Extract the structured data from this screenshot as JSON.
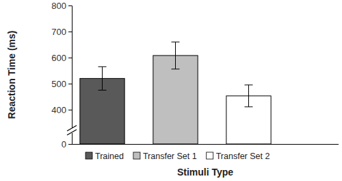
{
  "chart_data": {
    "type": "bar",
    "x_label": "Stimuli Type",
    "y_label": "Reaction Time (ms)",
    "categories": [
      "Trained",
      "Transfer Set 1",
      "Transfer Set 2"
    ],
    "values": [
      520,
      608,
      453
    ],
    "errors": [
      45,
      52,
      42
    ],
    "colors": [
      "#595959",
      "#bfbfbf",
      "#ffffff"
    ],
    "ylim": [
      0,
      800
    ],
    "yticks": [
      0,
      400,
      500,
      600,
      700,
      800
    ],
    "grid": false,
    "legend": "bottom",
    "tick_labels": "y"
  }
}
